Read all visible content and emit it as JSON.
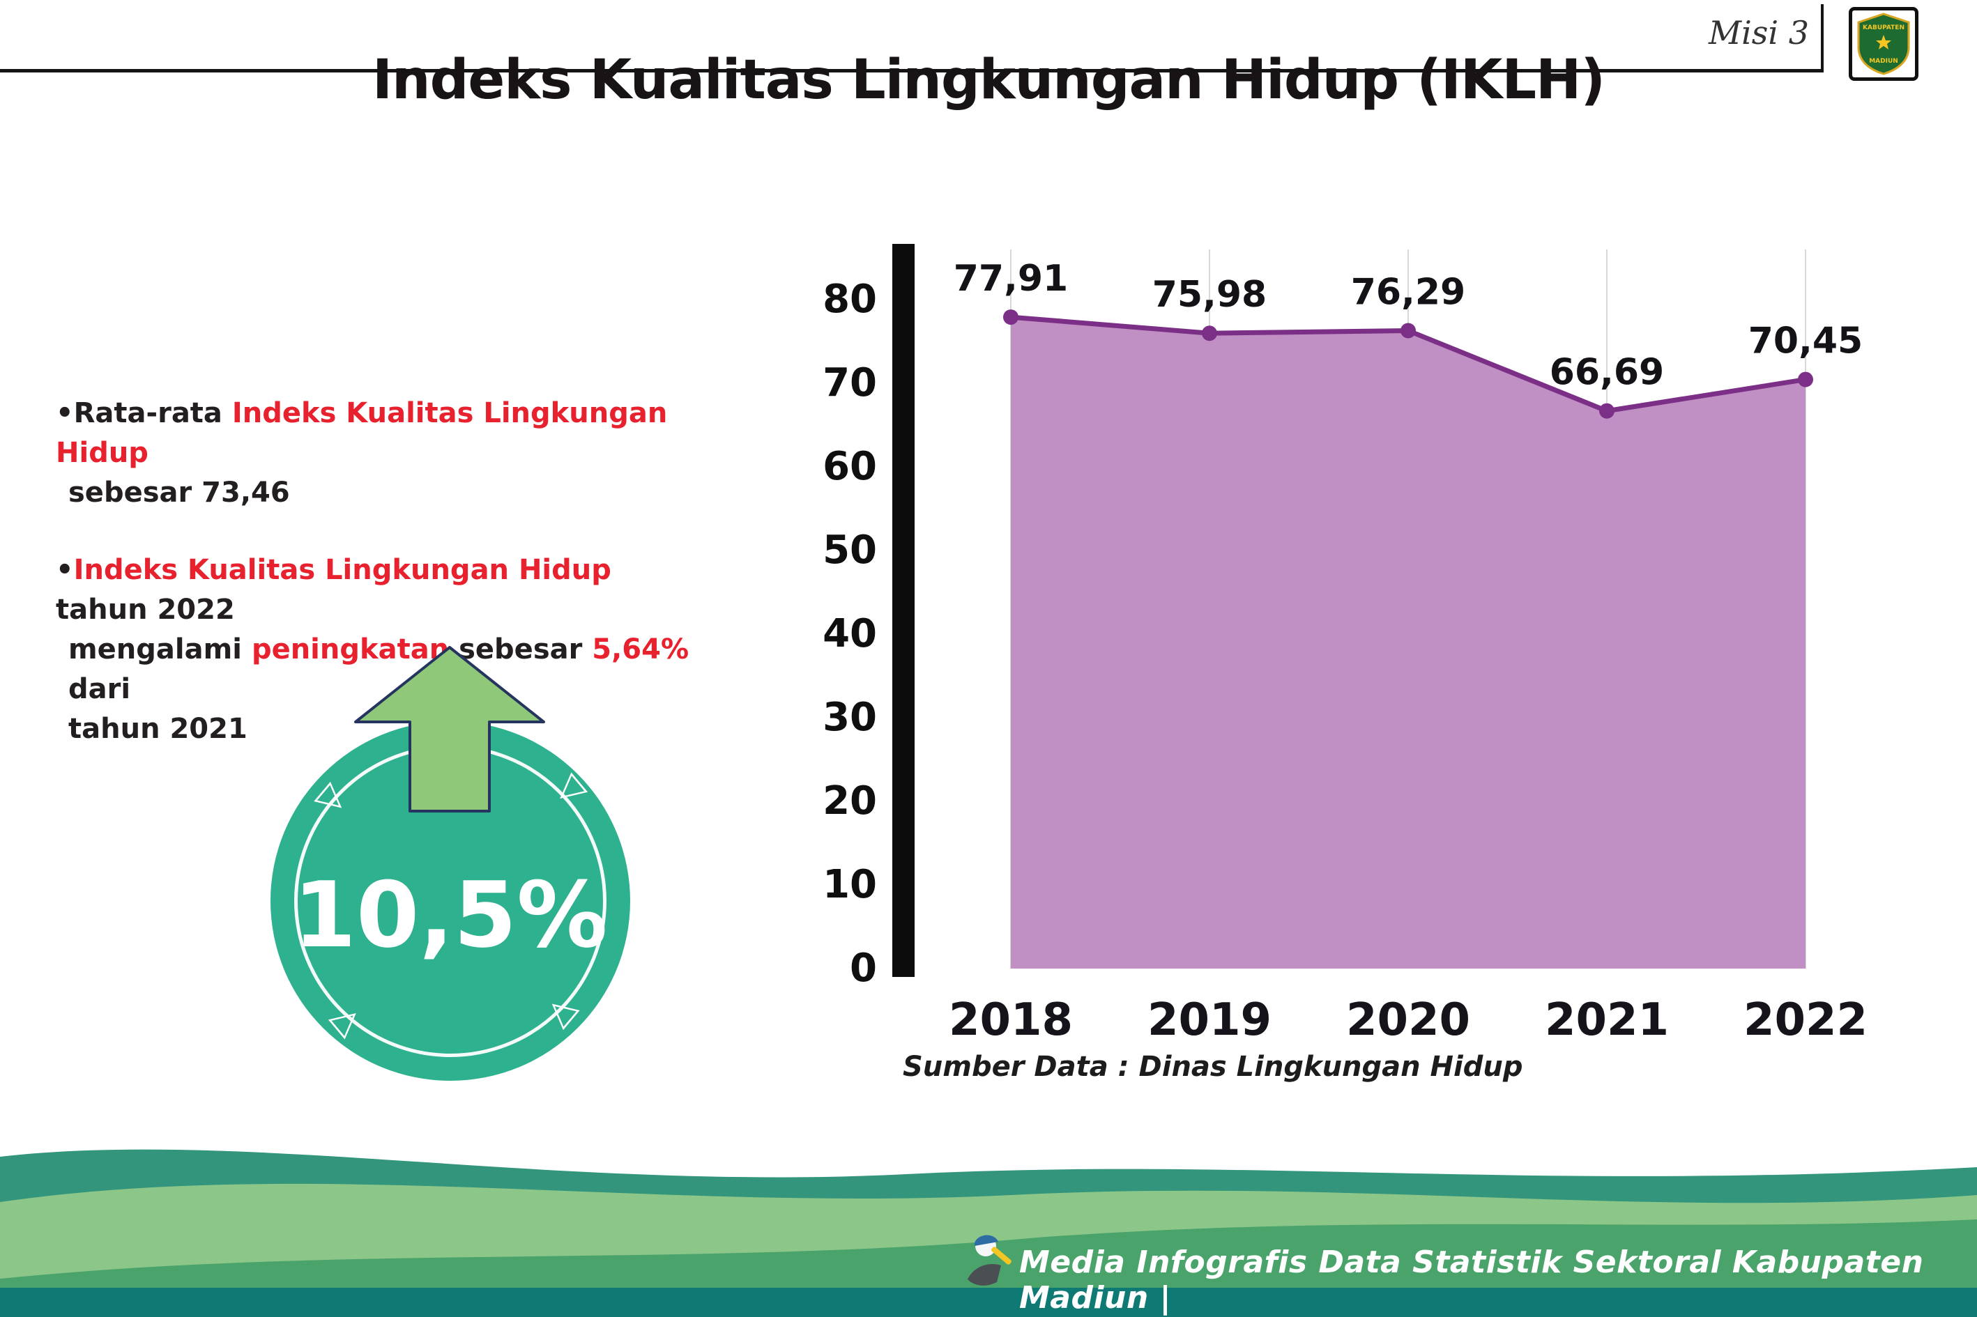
{
  "header": {
    "misi": "Misi 3",
    "title": "Indeks Kualitas Lingkungan Hidup (IKLH)",
    "logo": {
      "line1": "KABUPATEN",
      "line2": "MADIUN"
    }
  },
  "bullets": {
    "marker": "•",
    "b1": {
      "t1": "Rata-rata ",
      "r1": "Indeks Kualitas Lingkungan Hidup",
      "t2": "sebesar 73,46"
    },
    "b2": {
      "r1": "Indeks Kualitas Lingkungan Hidup",
      "t1": " tahun 2022",
      "t2": "mengalami ",
      "r2": "peningkatan",
      "t3": " sebesar ",
      "r3": "5,64%",
      "t4": " dari",
      "t5": "tahun 2021"
    }
  },
  "badge": {
    "value": "10,5%"
  },
  "icons": {
    "triangle": "▷"
  },
  "chart_data": {
    "type": "area",
    "title": "Indeks Kualitas Lingkungan Hidup (IKLH)",
    "categories": [
      "2018",
      "2019",
      "2020",
      "2021",
      "2022"
    ],
    "values": [
      77.91,
      75.98,
      76.29,
      66.69,
      70.45
    ],
    "value_labels": [
      "77,91",
      "75,98",
      "76,29",
      "66,69",
      "70,45"
    ],
    "xlabel": "",
    "ylabel": "",
    "ylim": [
      0,
      80
    ],
    "ytick_step": 10,
    "grid": "vertical",
    "legend": "none",
    "source_note": "Sumber Data : Dinas Lingkungan Hidup"
  },
  "footer": {
    "text": "Media Infografis Data Statistik Sektoral Kabupaten Madiun |"
  },
  "colors": {
    "accent_red": "#e8212e",
    "area_fill": "#c08fc4",
    "line": "#7b2f86",
    "axis_black": "#0c0c0c",
    "badge_teal": "#2eb18e",
    "arrow_green": "#8fc878",
    "arrow_outline": "#26355f",
    "footer_rear": "#33957c",
    "footer_light": "#8cc789",
    "footer_green": "#4ba36c",
    "footer_dark": "#0e7a73"
  }
}
